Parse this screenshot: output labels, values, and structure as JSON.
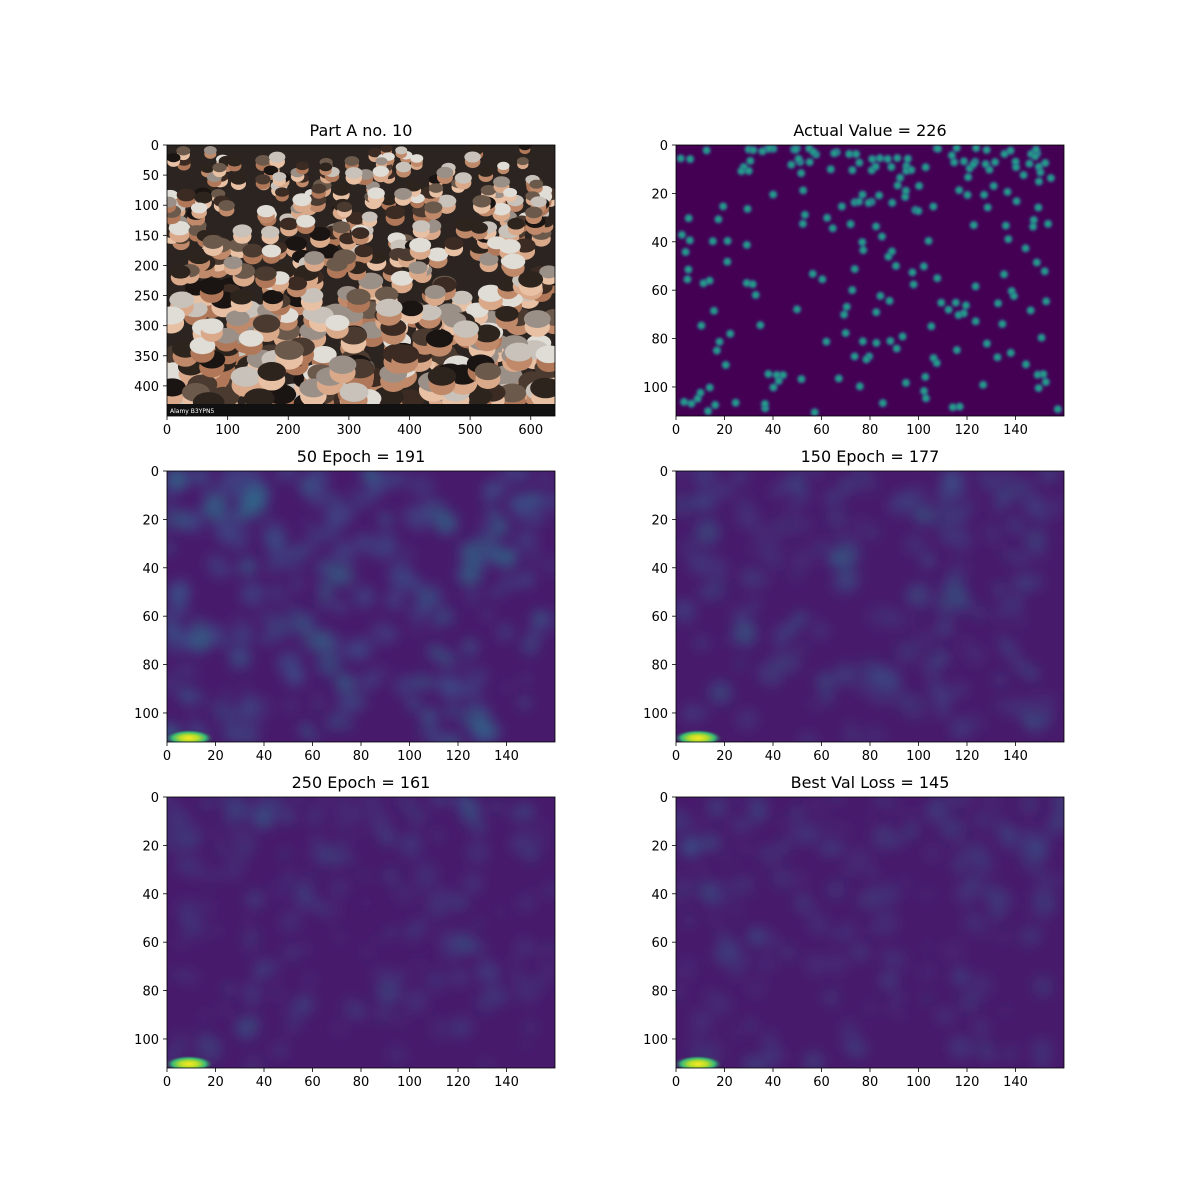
{
  "chart_data": [
    {
      "type": "heatmap",
      "title": "Part A no. 10",
      "content": "photo",
      "x_ticks": [
        0,
        100,
        200,
        300,
        400,
        500,
        600
      ],
      "y_ticks": [
        0,
        50,
        100,
        150,
        200,
        250,
        300,
        350,
        400
      ],
      "xlim": [
        0,
        640
      ],
      "ylim": [
        450,
        0
      ],
      "watermark": "Alamy B3YPN5"
    },
    {
      "type": "heatmap",
      "title": "Actual Value = 226",
      "content": "dots",
      "count": 226,
      "colormap": "viridis",
      "x_ticks": [
        0,
        20,
        40,
        60,
        80,
        100,
        120,
        140
      ],
      "y_ticks": [
        0,
        20,
        40,
        60,
        80,
        100
      ],
      "xlim": [
        0,
        160
      ],
      "ylim": [
        112,
        0
      ]
    },
    {
      "type": "heatmap",
      "title": "50 Epoch = 191",
      "content": "density",
      "colormap": "viridis",
      "x_ticks": [
        0,
        20,
        40,
        60,
        80,
        100,
        120,
        140
      ],
      "y_ticks": [
        0,
        20,
        40,
        60,
        80,
        100
      ],
      "xlim": [
        0,
        160
      ],
      "ylim": [
        112,
        0
      ]
    },
    {
      "type": "heatmap",
      "title": "150 Epoch = 177",
      "content": "density",
      "colormap": "viridis",
      "x_ticks": [
        0,
        20,
        40,
        60,
        80,
        100,
        120,
        140
      ],
      "y_ticks": [
        0,
        20,
        40,
        60,
        80,
        100
      ],
      "xlim": [
        0,
        160
      ],
      "ylim": [
        112,
        0
      ]
    },
    {
      "type": "heatmap",
      "title": "250 Epoch = 161",
      "content": "density",
      "colormap": "viridis",
      "x_ticks": [
        0,
        20,
        40,
        60,
        80,
        100,
        120,
        140
      ],
      "y_ticks": [
        0,
        20,
        40,
        60,
        80,
        100
      ],
      "xlim": [
        0,
        160
      ],
      "ylim": [
        112,
        0
      ]
    },
    {
      "type": "heatmap",
      "title": "Best Val Loss = 145",
      "content": "density",
      "colormap": "viridis",
      "x_ticks": [
        0,
        20,
        40,
        60,
        80,
        100,
        120,
        140
      ],
      "y_ticks": [
        0,
        20,
        40,
        60,
        80,
        100
      ],
      "xlim": [
        0,
        160
      ],
      "ylim": [
        112,
        0
      ]
    }
  ],
  "colors": {
    "viridis_low": "#440154",
    "viridis_dark": "#481a6c",
    "viridis_mid": "#2a788e",
    "viridis_teal": "#22a884",
    "viridis_high": "#fde725",
    "photo_base": "#2b2420"
  }
}
